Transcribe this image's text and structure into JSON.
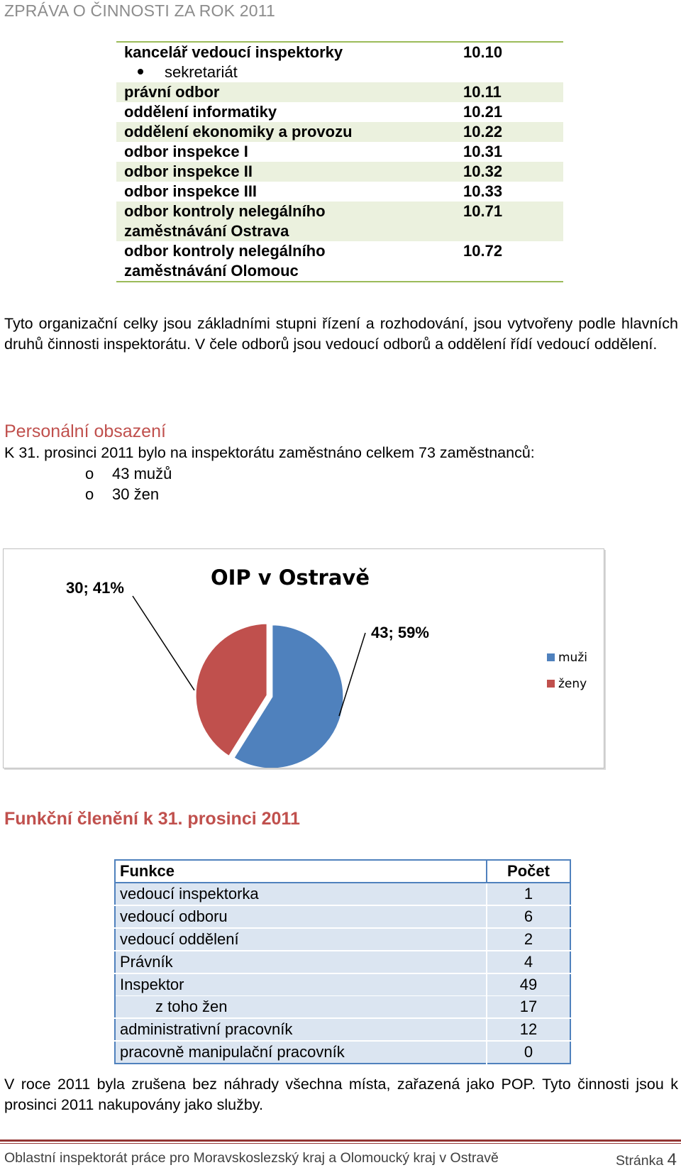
{
  "header": {
    "title": "ZPRÁVA O ČINNOSTI ZA ROK 2011"
  },
  "org_units": [
    {
      "name": "kancelář vedoucí inspektorky",
      "code": "10.10",
      "bold": true,
      "shaded": false
    },
    {
      "name": "sekretariát",
      "code": "",
      "bold": false,
      "shaded": false,
      "bullet": true
    },
    {
      "name": "právní odbor",
      "code": "10.11",
      "bold": true,
      "shaded": true
    },
    {
      "name": "oddělení informatiky",
      "code": "10.21",
      "bold": true,
      "shaded": false
    },
    {
      "name": "oddělení ekonomiky a provozu",
      "code": "10.22",
      "bold": true,
      "shaded": true
    },
    {
      "name": "odbor inspekce I",
      "code": "10.31",
      "bold": true,
      "shaded": false
    },
    {
      "name": "odbor inspekce II",
      "code": "10.32",
      "bold": true,
      "shaded": true
    },
    {
      "name": "odbor inspekce III",
      "code": "10.33",
      "bold": true,
      "shaded": false
    },
    {
      "name": "odbor kontroly nelegálního zaměstnávání Ostrava",
      "code": "10.71",
      "bold": true,
      "shaded": true
    },
    {
      "name": "odbor kontroly nelegálního zaměstnávání Olomouc",
      "code": "10.72",
      "bold": true,
      "shaded": false
    }
  ],
  "paragraph1": "Tyto organizační celky jsou základními stupni řízení a rozhodování, jsou vytvořeny podle hlavních druhů činnosti inspektorátu. V čele odborů jsou vedoucí odborů a oddělení řídí vedoucí oddělení.",
  "personal": {
    "title": "Personální obsazení",
    "text": "K 31. prosinci 2011 bylo na inspektorátu zaměstnáno celkem 73 zaměstnanců:",
    "bullet_glyph": "o",
    "items": [
      "43 mužů",
      "30 žen"
    ]
  },
  "chart_data": {
    "type": "pie",
    "title": "OIP v Ostravě",
    "categories": [
      "muži",
      "ženy"
    ],
    "values": [
      43,
      30
    ],
    "labels": [
      "43; 59%",
      "30; 41%"
    ],
    "colors": [
      "#4f81bd",
      "#c0504d"
    ],
    "legend_position": "right"
  },
  "functions": {
    "title": "Funkční členění k 31. prosinci 2011",
    "header": {
      "name": "Funkce",
      "count": "Počet"
    },
    "rows": [
      {
        "name": "vedoucí inspektorka",
        "count": "1"
      },
      {
        "name": "vedoucí odboru",
        "count": "6"
      },
      {
        "name": "vedoucí oddělení",
        "count": "2"
      },
      {
        "name": "Právník",
        "count": "4"
      },
      {
        "name": "Inspektor",
        "count": "49"
      },
      {
        "name": "z toho žen",
        "count": "17",
        "indent": true
      },
      {
        "name": "administrativní pracovník",
        "count": "12"
      },
      {
        "name": "pracovně manipulační pracovník",
        "count": "0"
      }
    ]
  },
  "paragraph2": "V roce 2011 byla zrušena bez náhrady všechna místa, zařazená jako POP. Tyto činnosti jsou k prosinci 2011 nakupovány jako služby.",
  "footer": {
    "text": "Oblastní inspektorát práce pro Moravskoslezský kraj a Olomoucký kraj v Ostravě",
    "page_label": "Stránka",
    "page_number": "4"
  }
}
